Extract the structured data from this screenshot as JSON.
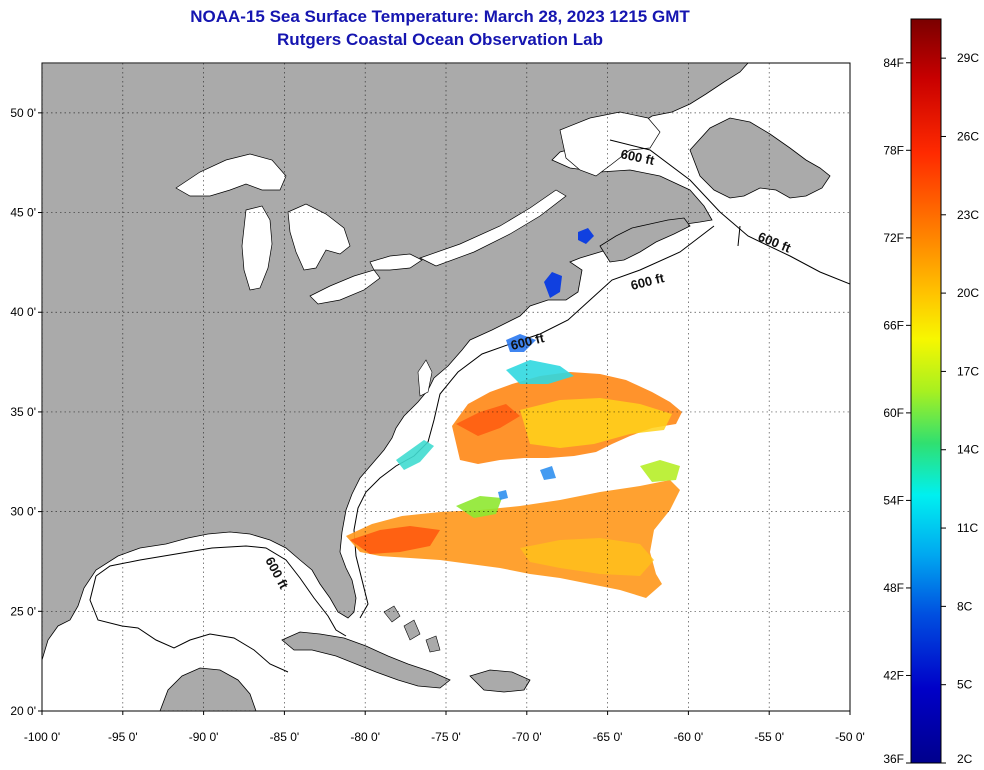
{
  "title": {
    "line1": "NOAA-15 Sea Surface Temperature:  March 28, 2023 1215 GMT",
    "line2": "Rutgers Coastal Ocean Observation Lab"
  },
  "map": {
    "lon_range": [
      -100,
      -50
    ],
    "lat_range": [
      20,
      52.5
    ],
    "lat_ticks": [
      {
        "lat": 50,
        "label": "50 0'"
      },
      {
        "lat": 45,
        "label": "45 0'"
      },
      {
        "lat": 40,
        "label": "40 0'"
      },
      {
        "lat": 35,
        "label": "35 0'"
      },
      {
        "lat": 30,
        "label": "30 0'"
      },
      {
        "lat": 25,
        "label": "25 0'"
      },
      {
        "lat": 20,
        "label": "20 0'"
      }
    ],
    "lon_ticks": [
      {
        "lon": -100,
        "label": "-100 0'"
      },
      {
        "lon": -95,
        "label": "-95 0'"
      },
      {
        "lon": -90,
        "label": "-90 0'"
      },
      {
        "lon": -85,
        "label": "-85 0'"
      },
      {
        "lon": -80,
        "label": "-80 0'"
      },
      {
        "lon": -75,
        "label": "-75 0'"
      },
      {
        "lon": -70,
        "label": "-70 0'"
      },
      {
        "lon": -65,
        "label": "-65 0'"
      },
      {
        "lon": -60,
        "label": "-60 0'"
      },
      {
        "lon": -55,
        "label": "-55 0'"
      },
      {
        "lon": -50,
        "label": "-50 0'"
      }
    ],
    "contour_labels": [
      "600 ft",
      "600 ft",
      "600 ft",
      "600 ft",
      "600 ft"
    ],
    "land_color": "#aaaaaa",
    "water_color": "#ffffff"
  },
  "colorbar": {
    "fahrenheit_labels": [
      "84F",
      "78F",
      "72F",
      "66F",
      "60F",
      "54F",
      "48F",
      "42F",
      "36F"
    ],
    "celsius_labels": [
      "29C",
      "26C",
      "23C",
      "20C",
      "17C",
      "14C",
      "11C",
      "8C",
      "5C",
      "2C"
    ],
    "colors": [
      "#7a0000",
      "#c80000",
      "#ff2a00",
      "#ff7a00",
      "#ffc400",
      "#f7f700",
      "#a8f020",
      "#30e070",
      "#00f0f0",
      "#00a8f0",
      "#0050e0",
      "#0000c8",
      "#00008c"
    ]
  }
}
